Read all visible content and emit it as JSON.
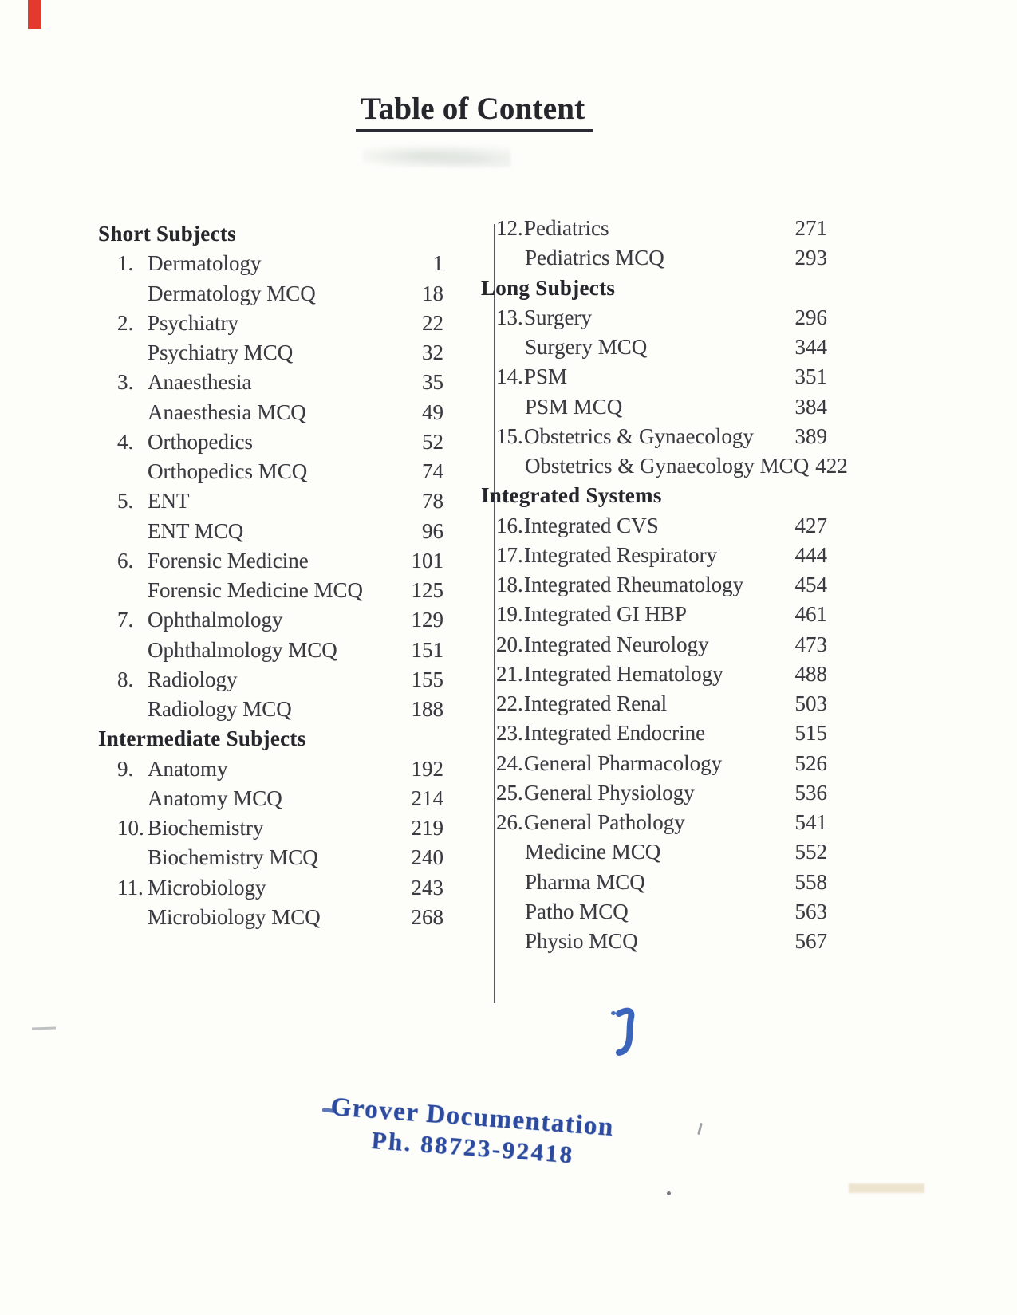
{
  "title": "Table of Content",
  "toc": {
    "columns": [
      {
        "side": "left",
        "rows": [
          {
            "type": "heading",
            "label": "Short Subjects"
          },
          {
            "type": "item",
            "num": "1.",
            "label": "Dermatology",
            "page": "1"
          },
          {
            "type": "sub",
            "label": "Dermatology MCQ",
            "page": "18"
          },
          {
            "type": "item",
            "num": "2.",
            "label": "Psychiatry",
            "page": "22"
          },
          {
            "type": "sub",
            "label": "Psychiatry MCQ",
            "page": "32"
          },
          {
            "type": "item",
            "num": "3.",
            "label": "Anaesthesia",
            "page": "35"
          },
          {
            "type": "sub",
            "label": "Anaesthesia MCQ",
            "page": "49"
          },
          {
            "type": "item",
            "num": "4.",
            "label": "Orthopedics",
            "page": "52"
          },
          {
            "type": "sub",
            "label": "Orthopedics MCQ",
            "page": "74"
          },
          {
            "type": "item",
            "num": "5.",
            "label": "ENT",
            "page": "78"
          },
          {
            "type": "sub",
            "label": "ENT MCQ",
            "page": "96"
          },
          {
            "type": "item",
            "num": "6.",
            "label": "Forensic Medicine",
            "page": "101"
          },
          {
            "type": "sub",
            "label": "Forensic Medicine MCQ",
            "page": "125"
          },
          {
            "type": "item",
            "num": "7.",
            "label": "Ophthalmology",
            "page": "129"
          },
          {
            "type": "sub",
            "label": "Ophthalmology MCQ",
            "page": "151"
          },
          {
            "type": "item",
            "num": "8.",
            "label": "Radiology",
            "page": "155"
          },
          {
            "type": "sub",
            "label": "Radiology MCQ",
            "page": "188"
          },
          {
            "type": "heading",
            "label": "Intermediate Subjects"
          },
          {
            "type": "item",
            "num": "9.",
            "label": "Anatomy",
            "page": "192"
          },
          {
            "type": "sub",
            "label": "Anatomy MCQ",
            "page": "214"
          },
          {
            "type": "item",
            "num": "10.",
            "label": "Biochemistry",
            "page": "219"
          },
          {
            "type": "sub",
            "label": "Biochemistry MCQ",
            "page": "240"
          },
          {
            "type": "item",
            "num": "11.",
            "label": "Microbiology",
            "page": "243"
          },
          {
            "type": "sub",
            "label": "Microbiology MCQ",
            "page": "268"
          }
        ]
      },
      {
        "side": "right",
        "rows": [
          {
            "type": "item",
            "num": "12.",
            "label": "Pediatrics",
            "page": "271"
          },
          {
            "type": "sub",
            "label": "Pediatrics MCQ",
            "page": "293"
          },
          {
            "type": "heading",
            "label": "Long Subjects"
          },
          {
            "type": "item",
            "num": "13.",
            "label": "Surgery",
            "page": "296"
          },
          {
            "type": "sub",
            "label": "Surgery MCQ",
            "page": "344"
          },
          {
            "type": "item",
            "num": "14.",
            "label": "PSM",
            "page": "351"
          },
          {
            "type": "sub",
            "label": "PSM MCQ",
            "page": "384"
          },
          {
            "type": "item",
            "num": "15.",
            "label": "Obstetrics & Gynaecology",
            "page": "389"
          },
          {
            "type": "sub",
            "label": "Obstetrics & Gynaecology MCQ",
            "page": "422"
          },
          {
            "type": "heading",
            "label": "Integrated Systems"
          },
          {
            "type": "item",
            "num": "16.",
            "label": "Integrated CVS",
            "page": "427"
          },
          {
            "type": "item",
            "num": "17.",
            "label": "Integrated Respiratory",
            "page": "444"
          },
          {
            "type": "item",
            "num": "18.",
            "label": "Integrated Rheumatology",
            "page": "454"
          },
          {
            "type": "item",
            "num": "19.",
            "label": "Integrated GI HBP",
            "page": "461"
          },
          {
            "type": "item",
            "num": "20.",
            "label": "Integrated Neurology",
            "page": "473"
          },
          {
            "type": "item",
            "num": "21.",
            "label": "Integrated Hematology",
            "page": "488"
          },
          {
            "type": "item",
            "num": "22.",
            "label": "Integrated Renal",
            "page": "503"
          },
          {
            "type": "item",
            "num": "23.",
            "label": "Integrated Endocrine",
            "page": "515"
          },
          {
            "type": "item",
            "num": "24.",
            "label": "General Pharmacology",
            "page": "526"
          },
          {
            "type": "item",
            "num": "25.",
            "label": "General Physiology",
            "page": "536"
          },
          {
            "type": "item",
            "num": "26.",
            "label": "General Pathology",
            "page": "541"
          },
          {
            "type": "sub",
            "label": "Medicine MCQ",
            "page": "552"
          },
          {
            "type": "sub",
            "label": "Pharma MCQ",
            "page": "558"
          },
          {
            "type": "sub",
            "label": "Patho MCQ",
            "page": "563"
          },
          {
            "type": "sub",
            "label": "Physio MCQ",
            "page": "567"
          }
        ]
      }
    ]
  },
  "stamp": {
    "line1": "Grover Documentation",
    "line2": "Ph. 88723-92418"
  },
  "colors": {
    "stamp_blue": "#2c4b9f",
    "ink_blue": "#2a57b5",
    "red_mark": "#e43a2e",
    "paper": "#fdfdfa",
    "text_ink": "#3a3a41"
  }
}
